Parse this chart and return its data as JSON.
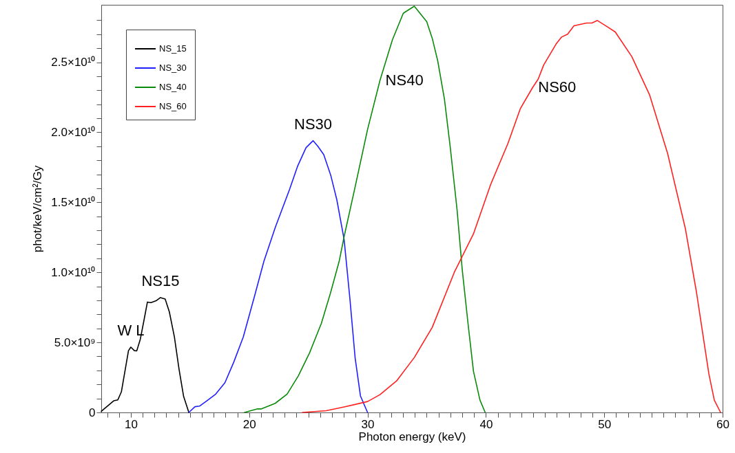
{
  "chart_data": {
    "type": "line",
    "xlabel": "Photon energy (keV)",
    "ylabel": "phot/keV/cm²/Gy",
    "xlim": [
      7.5,
      60
    ],
    "ylim": [
      0,
      29100000000.0
    ],
    "xticks": [
      {
        "value": 8,
        "label": null
      },
      {
        "value": 9,
        "label": null
      },
      10,
      {
        "value": 11,
        "label": null
      },
      {
        "value": 12,
        "label": null
      },
      {
        "value": 13,
        "label": null
      },
      {
        "value": 14,
        "label": null
      },
      {
        "value": 15,
        "label": null
      },
      {
        "value": 16,
        "label": null
      },
      {
        "value": 17,
        "label": null
      },
      {
        "value": 18,
        "label": null
      },
      {
        "value": 19,
        "label": null
      },
      20,
      {
        "value": 21,
        "label": null
      },
      {
        "value": 22,
        "label": null
      },
      {
        "value": 23,
        "label": null
      },
      {
        "value": 24,
        "label": null
      },
      {
        "value": 25,
        "label": null
      },
      {
        "value": 26,
        "label": null
      },
      {
        "value": 27,
        "label": null
      },
      {
        "value": 28,
        "label": null
      },
      {
        "value": 29,
        "label": null
      },
      30,
      {
        "value": 31,
        "label": null
      },
      {
        "value": 32,
        "label": null
      },
      {
        "value": 33,
        "label": null
      },
      {
        "value": 34,
        "label": null
      },
      {
        "value": 35,
        "label": null
      },
      {
        "value": 36,
        "label": null
      },
      {
        "value": 37,
        "label": null
      },
      {
        "value": 38,
        "label": null
      },
      {
        "value": 39,
        "label": null
      },
      40,
      {
        "value": 41,
        "label": null
      },
      {
        "value": 42,
        "label": null
      },
      {
        "value": 43,
        "label": null
      },
      {
        "value": 44,
        "label": null
      },
      {
        "value": 45,
        "label": null
      },
      {
        "value": 46,
        "label": null
      },
      {
        "value": 47,
        "label": null
      },
      {
        "value": 48,
        "label": null
      },
      {
        "value": 49,
        "label": null
      },
      50,
      {
        "value": 51,
        "label": null
      },
      {
        "value": 52,
        "label": null
      },
      {
        "value": 53,
        "label": null
      },
      {
        "value": 54,
        "label": null
      },
      {
        "value": 55,
        "label": null
      },
      {
        "value": 56,
        "label": null
      },
      {
        "value": 57,
        "label": null
      },
      {
        "value": 58,
        "label": null
      },
      {
        "value": 59,
        "label": null
      },
      60
    ],
    "yticks": [
      0,
      {
        "value": 1000000000.0,
        "label": null
      },
      {
        "value": 2000000000.0,
        "label": null
      },
      {
        "value": 3000000000.0,
        "label": null
      },
      {
        "value": 4000000000.0,
        "label": null
      },
      {
        "value": 5000000000.0,
        "label": "5.0×10⁹"
      },
      {
        "value": 6000000000.0,
        "label": null
      },
      {
        "value": 7000000000.0,
        "label": null
      },
      {
        "value": 8000000000.0,
        "label": null
      },
      {
        "value": 9000000000.0,
        "label": null
      },
      {
        "value": 10000000000.0,
        "label": "1.0×10¹⁰"
      },
      {
        "value": 11000000000.0,
        "label": null
      },
      {
        "value": 12000000000.0,
        "label": null
      },
      {
        "value": 13000000000.0,
        "label": null
      },
      {
        "value": 14000000000.0,
        "label": null
      },
      {
        "value": 15000000000.0,
        "label": "1.5×10¹⁰"
      },
      {
        "value": 16000000000.0,
        "label": null
      },
      {
        "value": 17000000000.0,
        "label": null
      },
      {
        "value": 18000000000.0,
        "label": null
      },
      {
        "value": 19000000000.0,
        "label": null
      },
      {
        "value": 20000000000.0,
        "label": "2.0×10¹⁰"
      },
      {
        "value": 21000000000.0,
        "label": null
      },
      {
        "value": 22000000000.0,
        "label": null
      },
      {
        "value": 23000000000.0,
        "label": null
      },
      {
        "value": 24000000000.0,
        "label": null
      },
      {
        "value": 25000000000.0,
        "label": "2.5×10¹⁰"
      },
      {
        "value": 26000000000.0,
        "label": null
      },
      {
        "value": 27000000000.0,
        "label": null
      },
      {
        "value": 28000000000.0,
        "label": null
      }
    ],
    "legend": "top left",
    "series": [
      {
        "name": "NS_15",
        "color": "#000000",
        "x": [
          7.5,
          8.55,
          8.9,
          9.2,
          9.8,
          10.0,
          10.3,
          10.5,
          10.8,
          11.1,
          11.4,
          11.7,
          12.13,
          12.5,
          12.9,
          13.25,
          13.68,
          14.07,
          14.46,
          14.9
        ],
        "values": [
          80000000.0,
          830000000.0,
          900000000.0,
          1470000000.0,
          4410000000.0,
          4660000000.0,
          4410000000.0,
          4400000000.0,
          5230000000.0,
          6540000000.0,
          7880000000.0,
          7840000000.0,
          7970000000.0,
          8200000000.0,
          8100000000.0,
          7190000000.0,
          5390000000.0,
          3100000000.0,
          1140000000.0,
          0
        ]
      },
      {
        "name": "NS_30",
        "color": "#1f1fff",
        "x": [
          14.9,
          15.42,
          15.8,
          16.4,
          17.17,
          17.95,
          18.7,
          19.5,
          20.46,
          21.24,
          22.2,
          23.4,
          24.1,
          24.8,
          25.4,
          25.8,
          26.3,
          26.9,
          27.4,
          28.02,
          28.5,
          28.95,
          29.4,
          30.0
        ],
        "values": [
          0,
          410000000.0,
          450000000.0,
          820000000.0,
          1310000000.0,
          2120000000.0,
          3600000000.0,
          5390000000.0,
          8330000000.0,
          10780000000.0,
          13200000000.0,
          15900000000.0,
          17600000000.0,
          18900000000.0,
          19400000000.0,
          19000000000.0,
          18400000000.0,
          16900000000.0,
          15200000000.0,
          12350000000.0,
          8200000000.0,
          3900000000.0,
          1180000000.0,
          0
        ]
      },
      {
        "name": "NS_40",
        "color": "#0a8a0a",
        "x": [
          19.6,
          20.66,
          21.0,
          22.2,
          23.2,
          24.15,
          25.1,
          26.1,
          26.86,
          27.6,
          28.02,
          28.95,
          30.0,
          31.05,
          32.1,
          33.02,
          33.95,
          35.0,
          35.47,
          35.93,
          36.5,
          36.98,
          37.56,
          38.0,
          38.5,
          38.95,
          39.5,
          39.94
        ],
        "values": [
          0,
          250000000.0,
          250000000.0,
          650000000.0,
          1310000000.0,
          2610000000.0,
          4250000000.0,
          6370000000.0,
          8500000000.0,
          10780000000.0,
          12550000000.0,
          16100000000.0,
          20200000000.0,
          23700000000.0,
          26600000000.0,
          28500000000.0,
          29000000000.0,
          27900000000.0,
          26700000000.0,
          25100000000.0,
          22350000000.0,
          19000000000.0,
          14500000000.0,
          10200000000.0,
          6270000000.0,
          2940000000.0,
          880000000.0,
          0
        ]
      },
      {
        "name": "NS_60",
        "color": "#ff2020",
        "x": [
          24.5,
          26.5,
          28.02,
          30.0,
          31.05,
          32.45,
          33.95,
          35.47,
          37.33,
          38.95,
          40.4,
          41.86,
          42.9,
          43.95,
          44.42,
          44.88,
          45.93,
          46.4,
          46.9,
          47.44,
          48.5,
          48.96,
          49.42,
          50.23,
          50.93,
          52.33,
          53.84,
          55.35,
          56.86,
          57.79,
          58.84,
          59.3,
          59.83
        ],
        "values": [
          0,
          120000000.0,
          390000000.0,
          780000000.0,
          1270000000.0,
          2250000000.0,
          3920000000.0,
          6080000000.0,
          10000000000.0,
          12750000000.0,
          16270000000.0,
          19200000000.0,
          21670000000.0,
          23200000000.0,
          23800000000.0,
          24800000000.0,
          26300000000.0,
          26800000000.0,
          27000000000.0,
          27600000000.0,
          27800000000.0,
          27800000000.0,
          27980000000.0,
          27550000000.0,
          27160000000.0,
          25400000000.0,
          22650000000.0,
          18500000000.0,
          13100000000.0,
          8600000000.0,
          2750000000.0,
          880000000.0,
          0
        ]
      }
    ],
    "annotations": [
      {
        "text": "NS15",
        "x": 12.5,
        "y": 8200000000.0
      },
      {
        "text": "W L",
        "x": 10.0,
        "y": 4660000000.0
      },
      {
        "text": "NS30",
        "x": 25.4,
        "y": 19400000000.0
      },
      {
        "text": "NS40",
        "x": 31.05,
        "y": 23700000000.0
      },
      {
        "text": "NS60",
        "x": 43.95,
        "y": 23200000000.0
      }
    ]
  }
}
